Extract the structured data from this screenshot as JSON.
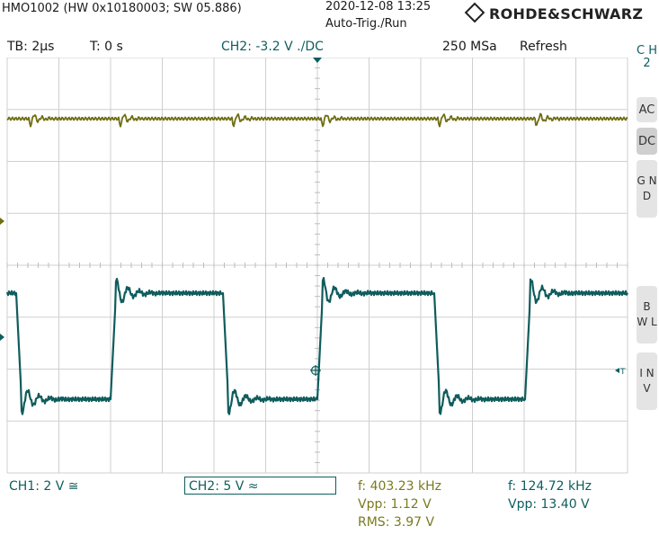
{
  "header": {
    "device": "HMO1002 (HW 0x10180003; SW 05.886)",
    "datetime": "2020-12-08 13:25",
    "trigger_mode": "Auto-Trig./Run",
    "brand": "ROHDE&SCHWARZ"
  },
  "status": {
    "timebase": "TB: 2µs",
    "time_offset": "T: 0 s",
    "ch2_trigger": "CH2: -3.2 V ./DC",
    "sample_rate": "250 MSa",
    "mode": "Refresh"
  },
  "sidebar": {
    "channel_label": "C H 2",
    "buttons": [
      {
        "id": "ac",
        "label": "AC"
      },
      {
        "id": "dc",
        "label": "DC"
      },
      {
        "id": "gnd",
        "label": "G N D"
      },
      {
        "id": "bwl",
        "label": "B W L"
      },
      {
        "id": "inv",
        "label": "I N V"
      }
    ]
  },
  "footer": {
    "ch1_scale": "CH1: 2 V ≅",
    "ch2_scale": "CH2: 5 V ≈",
    "ch1_freq": "f: 403.23 kHz",
    "ch1_vpp": "Vpp: 1.12 V",
    "ch1_rms": "RMS: 3.97 V",
    "ch2_freq": "f: 124.72 kHz",
    "ch2_vpp": "Vpp: 13.40 V"
  },
  "colors": {
    "ch1": "#6e6e14",
    "ch2": "#0f5c5c",
    "grid": "#cfcfcf",
    "background": "#ffffff"
  },
  "icons": [
    "rs-logo-icon",
    "trigger-level-marker-icon",
    "ch1-ground-marker-icon",
    "ch2-ground-marker-icon",
    "trigger-position-icon",
    "trigger-t-marker-icon"
  ]
}
